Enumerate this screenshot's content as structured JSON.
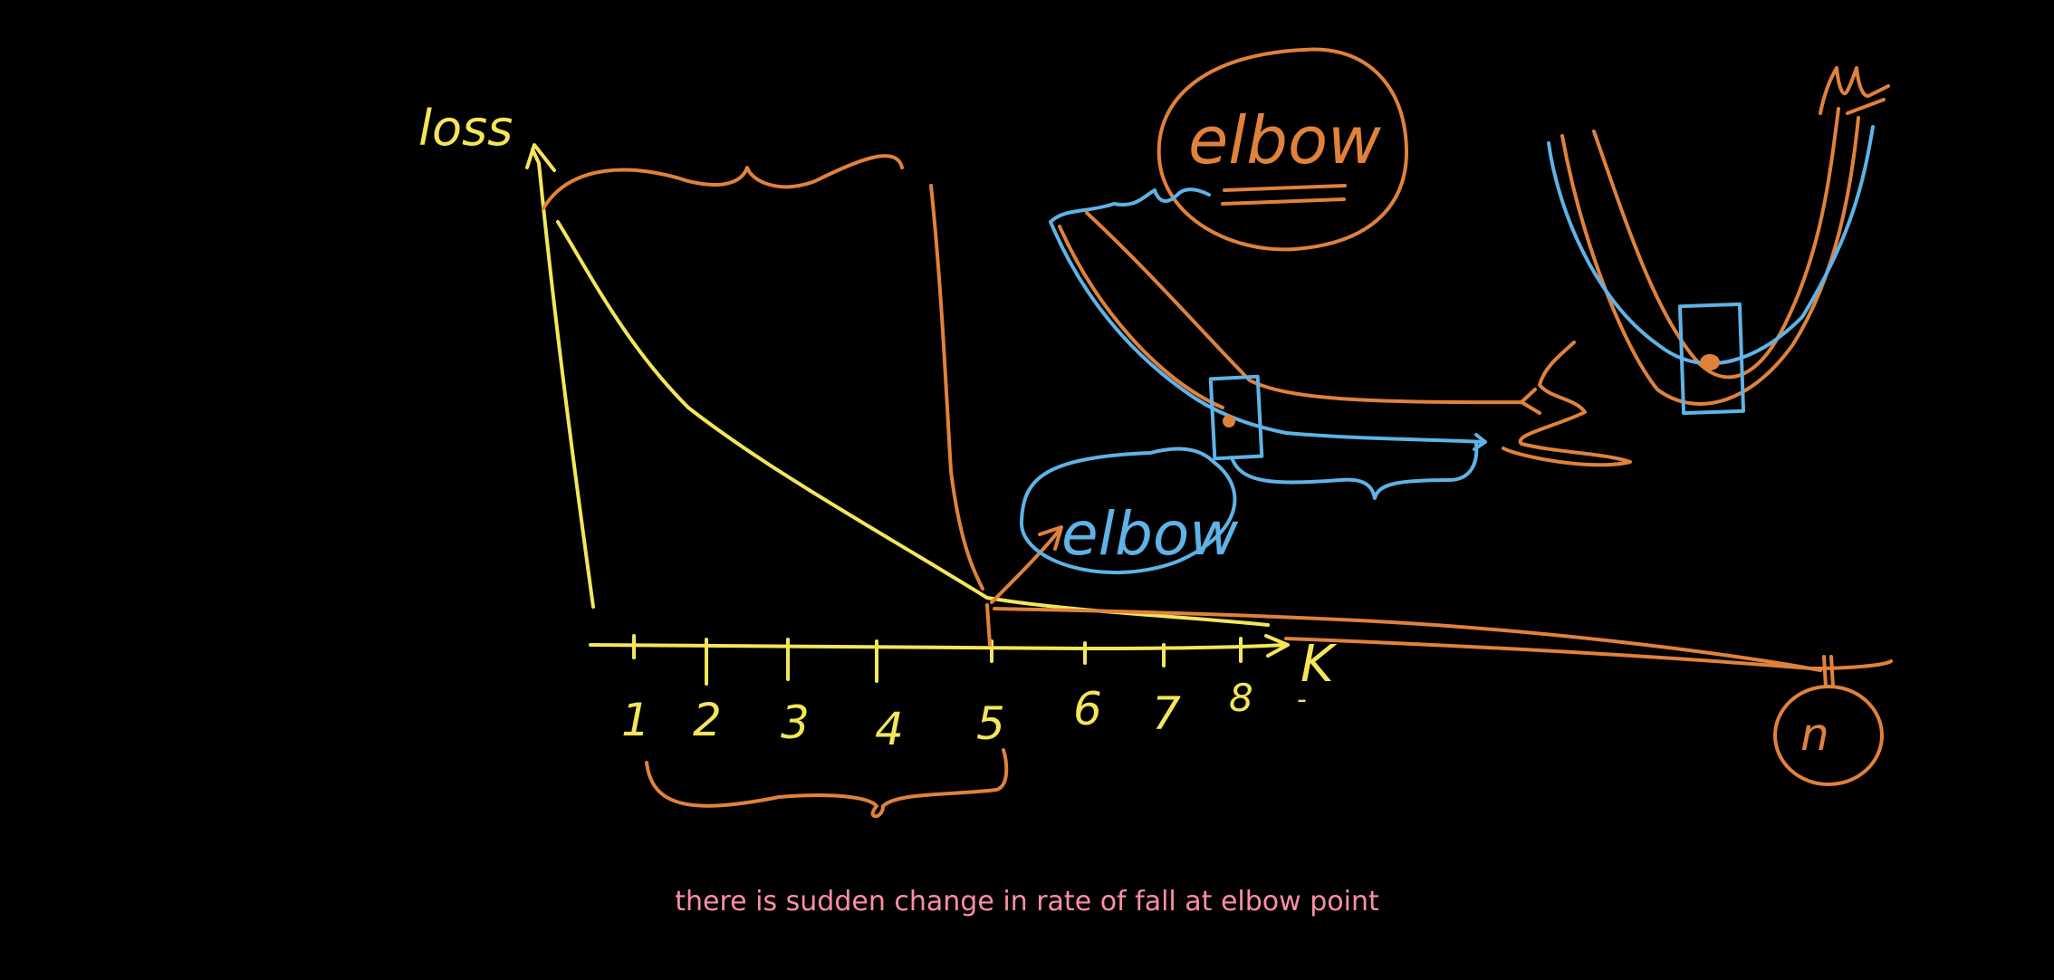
{
  "axis": {
    "y_label": "loss",
    "x_label": "K",
    "ticks": [
      "1",
      "2",
      "3",
      "4",
      "5",
      "6",
      "7",
      "8",
      "-"
    ]
  },
  "annotations": {
    "elbow_top": "elbow",
    "elbow_mid": "elbow",
    "n_label": "n"
  },
  "caption": "there is sudden change in rate of fall at elbow point",
  "colors": {
    "yellow": "#f3e65a",
    "orange": "#e0823c",
    "blue": "#5fb3e6",
    "caption": "#ff8fa3"
  }
}
